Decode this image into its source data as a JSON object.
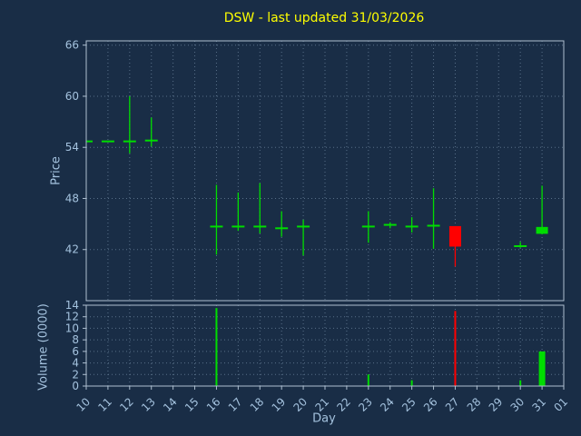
{
  "colors": {
    "background": "#192d46",
    "grid": "#8ca6bf",
    "frame": "#aebfd0",
    "tick_text": "#a4c2de",
    "title": "#ffff00",
    "up": "#00dd00",
    "down": "#ff0000"
  },
  "chart_data": {
    "type": "candlestick",
    "title": "DSW - last updated 31/03/2026",
    "xlabel": "Day",
    "price_axis": {
      "label": "Price",
      "ticks": [
        42,
        48,
        54,
        60,
        66
      ],
      "ylim": [
        36,
        66.5
      ]
    },
    "volume_axis": {
      "label": "Volume (0000)",
      "ticks": [
        0,
        2,
        4,
        6,
        8,
        10,
        12,
        14
      ],
      "ylim": [
        0,
        14
      ]
    },
    "x_ticks": [
      "10",
      "11",
      "12",
      "13",
      "14",
      "15",
      "16",
      "17",
      "18",
      "19",
      "20",
      "21",
      "22",
      "23",
      "24",
      "25",
      "26",
      "27",
      "28",
      "29",
      "30",
      "31",
      "01"
    ],
    "grid": true,
    "candles": [
      {
        "day": "10",
        "open": 54.7,
        "high": 54.7,
        "low": 54.7,
        "close": 54.7
      },
      {
        "day": "11",
        "open": 54.7,
        "high": 54.7,
        "low": 54.7,
        "close": 54.7
      },
      {
        "day": "12",
        "open": 54.7,
        "high": 60.0,
        "low": 53.3,
        "close": 54.7
      },
      {
        "day": "13",
        "open": 54.8,
        "high": 57.5,
        "low": 54.1,
        "close": 54.8
      },
      {
        "day": "16",
        "open": 44.7,
        "high": 49.6,
        "low": 41.4,
        "close": 44.7
      },
      {
        "day": "17",
        "open": 44.7,
        "high": 48.7,
        "low": 44.2,
        "close": 44.7
      },
      {
        "day": "18",
        "open": 44.7,
        "high": 49.8,
        "low": 43.9,
        "close": 44.7
      },
      {
        "day": "19",
        "open": 44.5,
        "high": 46.5,
        "low": 43.5,
        "close": 44.5
      },
      {
        "day": "20",
        "open": 44.7,
        "high": 45.5,
        "low": 41.3,
        "close": 44.7
      },
      {
        "day": "23",
        "open": 44.7,
        "high": 46.5,
        "low": 42.8,
        "close": 44.7
      },
      {
        "day": "24",
        "open": 44.9,
        "high": 45.2,
        "low": 44.5,
        "close": 44.9
      },
      {
        "day": "25",
        "open": 44.7,
        "high": 45.8,
        "low": 44.0,
        "close": 44.7
      },
      {
        "day": "26",
        "open": 44.8,
        "high": 49.2,
        "low": 42.1,
        "close": 44.8
      },
      {
        "day": "27",
        "open": 44.7,
        "high": 44.7,
        "low": 40.0,
        "close": 42.4
      },
      {
        "day": "30",
        "open": 42.4,
        "high": 42.9,
        "low": 42.2,
        "close": 42.4
      },
      {
        "day": "31",
        "open": 43.9,
        "high": 49.5,
        "low": 43.8,
        "close": 44.6
      }
    ],
    "volume_bars": [
      {
        "day": "16",
        "value": 13.5,
        "direction": "up",
        "width": 2
      },
      {
        "day": "23",
        "value": 2.0,
        "direction": "up",
        "width": 2
      },
      {
        "day": "25",
        "value": 1.0,
        "direction": "up",
        "width": 2
      },
      {
        "day": "27",
        "value": 13.0,
        "direction": "down",
        "width": 2
      },
      {
        "day": "30",
        "value": 1.0,
        "direction": "up",
        "width": 2
      },
      {
        "day": "31",
        "value": 6.0,
        "direction": "up",
        "width": 7
      }
    ]
  }
}
